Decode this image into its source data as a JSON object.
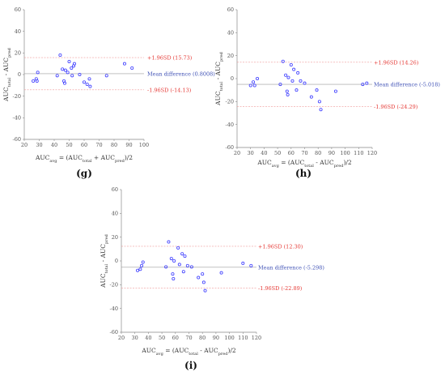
{
  "chart_data": [
    {
      "panel": "(g)",
      "type": "scatter",
      "title": "",
      "xlabel": {
        "main": "AUC",
        "sub": "avg",
        "rest": " = (AUC",
        "sub2": "total",
        "rest2": " + AUC",
        "sub3": "pred",
        "rest3": ")/2"
      },
      "ylabel": {
        "main": "AUC",
        "sub": "total",
        "rest": " - AUC",
        "sub2": "pred"
      },
      "xlim": [
        20,
        100
      ],
      "ylim": [
        -60,
        60
      ],
      "xticks": [
        20,
        30,
        40,
        50,
        60,
        70,
        80,
        90,
        100
      ],
      "yticks": [
        -60,
        -40,
        -20,
        0,
        20,
        40,
        60
      ],
      "upper_sd": {
        "value": 15.73,
        "label": "+1.96SD (15.73)"
      },
      "mean": {
        "value": 0.8008,
        "label": "Mean difference (0.8008)"
      },
      "lower_sd": {
        "value": -14.13,
        "label": "-1.96SD (-14.13)"
      },
      "points": [
        [
          26,
          -6
        ],
        [
          28,
          -4
        ],
        [
          28.5,
          -6
        ],
        [
          29,
          2
        ],
        [
          42,
          -1
        ],
        [
          44,
          18
        ],
        [
          45.5,
          5
        ],
        [
          46.5,
          -6
        ],
        [
          47,
          -8
        ],
        [
          47.5,
          4
        ],
        [
          49,
          2
        ],
        [
          50,
          12
        ],
        [
          51.5,
          6
        ],
        [
          52,
          -1
        ],
        [
          53,
          8
        ],
        [
          53.5,
          10
        ],
        [
          57,
          0
        ],
        [
          60,
          -7
        ],
        [
          62,
          -9
        ],
        [
          63.5,
          -4
        ],
        [
          64,
          -11
        ],
        [
          75,
          -1
        ],
        [
          87,
          10
        ],
        [
          92,
          6
        ]
      ]
    },
    {
      "panel": "(h)",
      "type": "scatter",
      "title": "",
      "xlabel": {
        "main": "AUC",
        "sub": "avg",
        "rest": " = (AUC",
        "sub2": "total",
        "rest2": " - AUC",
        "sub3": "pred",
        "rest3": ")/2"
      },
      "ylabel": {
        "main": "AUC",
        "sub": "total",
        "rest": " - AUC",
        "sub2": "pred"
      },
      "xlim": [
        20,
        120
      ],
      "ylim": [
        -60,
        60
      ],
      "xticks": [
        20,
        30,
        40,
        50,
        60,
        70,
        80,
        90,
        100,
        110,
        120
      ],
      "yticks": [
        -60,
        -40,
        -20,
        0,
        20,
        40,
        60
      ],
      "upper_sd": {
        "value": 14.26,
        "label": "+1.96SD (14.26)"
      },
      "mean": {
        "value": -5.018,
        "label": "Mean difference (-5.018)"
      },
      "lower_sd": {
        "value": -24.29,
        "label": "-1.96SD (-24.29)"
      },
      "points": [
        [
          30,
          -6
        ],
        [
          32,
          -3
        ],
        [
          33,
          -6
        ],
        [
          35,
          0
        ],
        [
          52,
          -5
        ],
        [
          54,
          15
        ],
        [
          56,
          3
        ],
        [
          57,
          -11
        ],
        [
          57.5,
          -14
        ],
        [
          58,
          1
        ],
        [
          60,
          12
        ],
        [
          61,
          -2
        ],
        [
          62,
          8
        ],
        [
          64,
          -10
        ],
        [
          65,
          5
        ],
        [
          67,
          -2
        ],
        [
          70,
          -4
        ],
        [
          75,
          -16
        ],
        [
          79,
          -10
        ],
        [
          81,
          -20
        ],
        [
          82,
          -27
        ],
        [
          93,
          -11
        ],
        [
          113,
          -5
        ],
        [
          116,
          -4
        ]
      ]
    },
    {
      "panel": "(i)",
      "type": "scatter",
      "title": "",
      "xlabel": {
        "main": "AUC",
        "sub": "avg",
        "rest": " = (AUC",
        "sub2": "total",
        "rest2": " - AUC",
        "sub3": "pred",
        "rest3": ")/2"
      },
      "ylabel": {
        "main": "AUC",
        "sub": "total",
        "rest": " - AUC",
        "sub2": "pred"
      },
      "xlim": [
        20,
        120
      ],
      "ylim": [
        -60,
        60
      ],
      "xticks": [
        20,
        30,
        40,
        50,
        60,
        70,
        80,
        90,
        100,
        110,
        120
      ],
      "yticks": [
        -60,
        -40,
        -20,
        0,
        20,
        40,
        60
      ],
      "upper_sd": {
        "value": 12.3,
        "label": "+1.96SD (12.30)"
      },
      "mean": {
        "value": -5.298,
        "label": "Mean difference (-5.298)"
      },
      "lower_sd": {
        "value": -22.89,
        "label": "-1.96SD (-22.89)"
      },
      "points": [
        [
          32,
          -8
        ],
        [
          34,
          -7
        ],
        [
          35,
          -4
        ],
        [
          36,
          -1
        ],
        [
          53,
          -5
        ],
        [
          55,
          16
        ],
        [
          57,
          2
        ],
        [
          58,
          -11
        ],
        [
          58.5,
          -15
        ],
        [
          59,
          0
        ],
        [
          62,
          11
        ],
        [
          63,
          -3
        ],
        [
          65,
          6
        ],
        [
          66,
          -9
        ],
        [
          67,
          4
        ],
        [
          69,
          -4
        ],
        [
          72,
          -5
        ],
        [
          77,
          -14
        ],
        [
          80,
          -11
        ],
        [
          81,
          -18
        ],
        [
          82,
          -25
        ],
        [
          94,
          -10
        ],
        [
          110,
          -2
        ],
        [
          116,
          -4
        ]
      ]
    }
  ],
  "colors": {
    "point": "#3d3dff",
    "mean_line": "#9e9e9e",
    "sd_line": "#ef9a9a",
    "sd_text": "#e53935",
    "mean_text": "#3f51b5",
    "axis": "#888888"
  }
}
